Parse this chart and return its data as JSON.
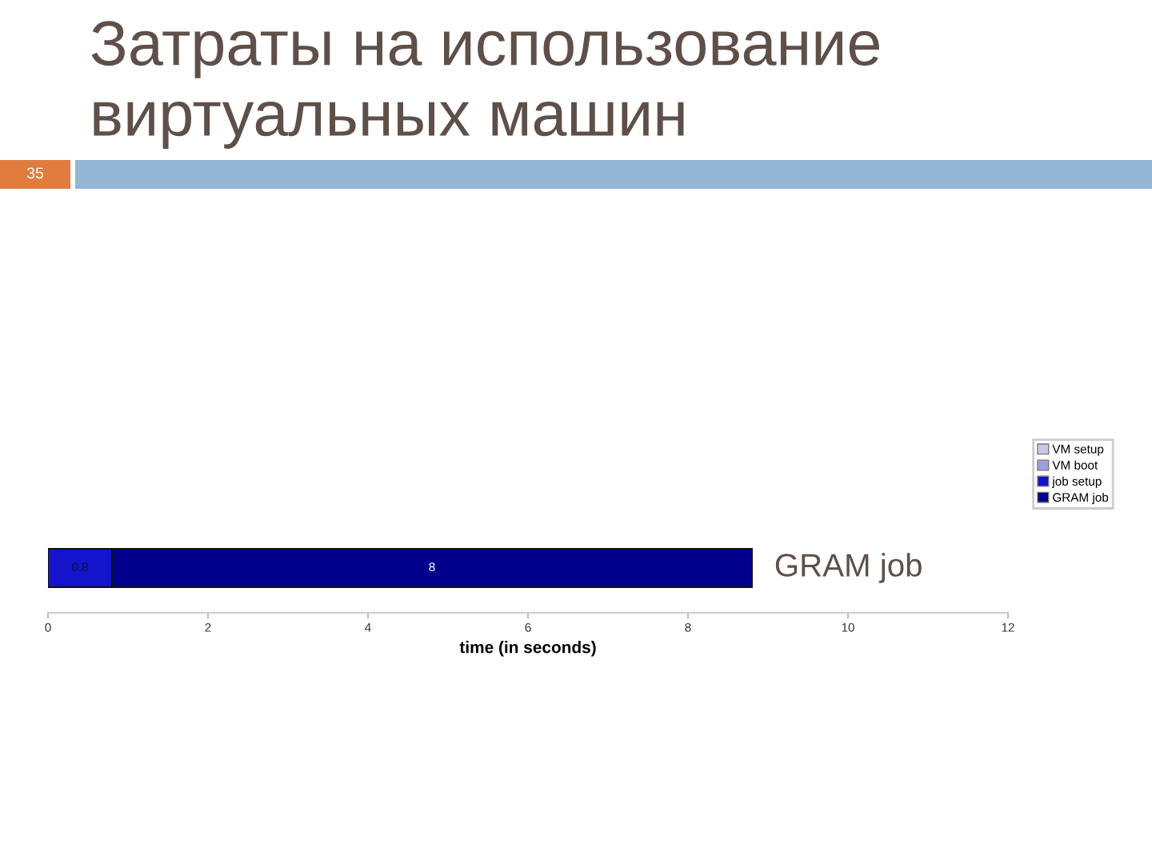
{
  "chart_data": {
    "type": "bar",
    "orientation": "horizontal",
    "stacked": true,
    "title": "Затраты на использование виртуальных машин",
    "xlabel": "time (in seconds)",
    "categories": [
      "GRAM job"
    ],
    "series": [
      {
        "name": "VM setup",
        "color": "#c8c8e8",
        "values": [
          null
        ]
      },
      {
        "name": "VM boot",
        "color": "#9f9fe0",
        "values": [
          null
        ]
      },
      {
        "name": "job setup",
        "color": "#1414cc",
        "values": [
          0.8
        ]
      },
      {
        "name": "GRAM job",
        "color": "#00008c",
        "values": [
          8
        ]
      }
    ],
    "xlim": [
      0,
      12
    ],
    "xticks": [
      0,
      2,
      4,
      6,
      8,
      10,
      12
    ],
    "data_labels": true,
    "legend": "top right",
    "annotations": [
      "35"
    ]
  }
}
